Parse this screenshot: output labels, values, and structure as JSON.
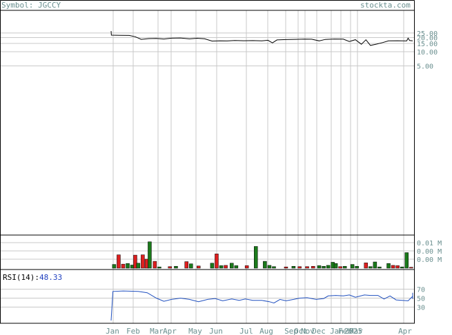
{
  "header": {
    "symbol_prefix": "Symbol:",
    "symbol": "JGCCY",
    "brand": "stockta.com"
  },
  "colors": {
    "price_line": "#000000",
    "volume_up": "#1b7a1b",
    "volume_down": "#dd1f1f",
    "rsi_line": "#1f4fbf",
    "grid": "#c8c8c8",
    "axis_text": "#6a8f8f",
    "frame": "#000000"
  },
  "rsi": {
    "label": "RSI(14):",
    "value": "48.33"
  },
  "chart_data": [
    {
      "type": "line",
      "name": "price",
      "x_labels": [
        "Jan",
        "Feb",
        "Mar",
        "Apr",
        "May",
        "Jun",
        "Jul",
        "Aug",
        "Sep",
        "Oct",
        "Nov",
        "Dec",
        "Jan",
        "Feb",
        "2025",
        "Mar",
        "Apr"
      ],
      "y_ticks": [
        "25.00",
        "20.00",
        "15.00",
        "10.00",
        "5.00"
      ],
      "y_tick_values": [
        25,
        20,
        15,
        10,
        5
      ],
      "ylim": [
        0,
        27.5
      ],
      "log_scale": true,
      "grid": true,
      "points": [
        [
          0.0,
          27.5
        ],
        [
          0.001,
          22.5
        ],
        [
          0.03,
          22.3
        ],
        [
          0.06,
          22.2
        ],
        [
          0.08,
          20.8
        ],
        [
          0.1,
          18.3
        ],
        [
          0.125,
          19.0
        ],
        [
          0.15,
          19.2
        ],
        [
          0.175,
          18.6
        ],
        [
          0.2,
          19.4
        ],
        [
          0.23,
          19.6
        ],
        [
          0.26,
          18.7
        ],
        [
          0.285,
          19.3
        ],
        [
          0.31,
          18.8
        ],
        [
          0.335,
          16.8
        ],
        [
          0.36,
          17.0
        ],
        [
          0.385,
          16.9
        ],
        [
          0.41,
          17.3
        ],
        [
          0.44,
          17.1
        ],
        [
          0.47,
          17.2
        ],
        [
          0.5,
          17.0
        ],
        [
          0.52,
          17.5
        ],
        [
          0.535,
          15.4
        ],
        [
          0.55,
          17.8
        ],
        [
          0.58,
          18.1
        ],
        [
          0.61,
          18.3
        ],
        [
          0.64,
          18.5
        ],
        [
          0.665,
          18.4
        ],
        [
          0.69,
          17.0
        ],
        [
          0.71,
          18.2
        ],
        [
          0.74,
          18.6
        ],
        [
          0.77,
          18.5
        ],
        [
          0.79,
          16.5
        ],
        [
          0.81,
          18.0
        ],
        [
          0.83,
          14.4
        ],
        [
          0.845,
          17.9
        ],
        [
          0.86,
          13.6
        ],
        [
          0.88,
          14.5
        ],
        [
          0.9,
          15.6
        ],
        [
          0.92,
          17.0
        ],
        [
          0.95,
          17.1
        ],
        [
          0.98,
          16.9
        ],
        [
          0.985,
          19.4
        ],
        [
          0.99,
          17.3
        ],
        [
          1.0,
          17.0
        ]
      ]
    },
    {
      "type": "bar",
      "name": "volume",
      "y_ticks": [
        "0.01 M",
        "0.00 M",
        "0.00 M"
      ],
      "grid": true,
      "bars": [
        [
          0.01,
          1.2,
          "up"
        ],
        [
          0.025,
          4.3,
          "down"
        ],
        [
          0.04,
          1.3,
          "down"
        ],
        [
          0.055,
          1.5,
          "up"
        ],
        [
          0.07,
          1.0,
          "up"
        ],
        [
          0.08,
          4.2,
          "down"
        ],
        [
          0.09,
          1.6,
          "up"
        ],
        [
          0.105,
          4.3,
          "down"
        ],
        [
          0.118,
          2.9,
          "down"
        ],
        [
          0.128,
          8.5,
          "up"
        ],
        [
          0.145,
          2.2,
          "down"
        ],
        [
          0.16,
          0.4,
          "up"
        ],
        [
          0.195,
          0.5,
          "down"
        ],
        [
          0.215,
          0.6,
          "up"
        ],
        [
          0.25,
          2.1,
          "down"
        ],
        [
          0.265,
          1.4,
          "up"
        ],
        [
          0.29,
          0.7,
          "down"
        ],
        [
          0.335,
          1.6,
          "up"
        ],
        [
          0.35,
          4.6,
          "down"
        ],
        [
          0.365,
          0.8,
          "up"
        ],
        [
          0.38,
          0.9,
          "down"
        ],
        [
          0.4,
          1.6,
          "up"
        ],
        [
          0.415,
          0.8,
          "up"
        ],
        [
          0.45,
          0.8,
          "down"
        ],
        [
          0.48,
          7.0,
          "up"
        ],
        [
          0.51,
          2.2,
          "up"
        ],
        [
          0.525,
          0.9,
          "up"
        ],
        [
          0.54,
          0.5,
          "up"
        ],
        [
          0.58,
          0.4,
          "down"
        ],
        [
          0.605,
          0.6,
          "up"
        ],
        [
          0.625,
          0.5,
          "down"
        ],
        [
          0.65,
          0.5,
          "down"
        ],
        [
          0.67,
          0.6,
          "down"
        ],
        [
          0.69,
          0.8,
          "up"
        ],
        [
          0.705,
          0.6,
          "up"
        ],
        [
          0.72,
          0.9,
          "up"
        ],
        [
          0.735,
          1.9,
          "up"
        ],
        [
          0.745,
          1.5,
          "up"
        ],
        [
          0.76,
          0.5,
          "down"
        ],
        [
          0.775,
          0.6,
          "up"
        ],
        [
          0.8,
          1.2,
          "up"
        ],
        [
          0.815,
          0.6,
          "up"
        ],
        [
          0.845,
          1.7,
          "down"
        ],
        [
          0.86,
          0.5,
          "up"
        ],
        [
          0.875,
          2.0,
          "up"
        ],
        [
          0.89,
          0.4,
          "up"
        ],
        [
          0.92,
          1.5,
          "up"
        ],
        [
          0.935,
          0.9,
          "down"
        ],
        [
          0.95,
          0.8,
          "down"
        ],
        [
          0.965,
          0.4,
          "up"
        ],
        [
          0.98,
          5.0,
          "up"
        ],
        [
          0.995,
          0.3,
          "down"
        ]
      ]
    },
    {
      "type": "line",
      "name": "rsi",
      "y_ticks": [
        "70",
        "50",
        "30"
      ],
      "y_tick_values": [
        70,
        50,
        30
      ],
      "ylim": [
        0,
        100
      ],
      "grid": true,
      "points": [
        [
          0.0,
          0
        ],
        [
          0.006,
          65
        ],
        [
          0.04,
          66
        ],
        [
          0.09,
          65
        ],
        [
          0.12,
          62
        ],
        [
          0.15,
          50
        ],
        [
          0.175,
          43
        ],
        [
          0.2,
          47
        ],
        [
          0.23,
          50
        ],
        [
          0.26,
          47
        ],
        [
          0.29,
          42
        ],
        [
          0.32,
          47
        ],
        [
          0.345,
          49
        ],
        [
          0.37,
          44
        ],
        [
          0.4,
          48
        ],
        [
          0.425,
          45
        ],
        [
          0.445,
          48
        ],
        [
          0.47,
          45
        ],
        [
          0.5,
          45
        ],
        [
          0.525,
          42
        ],
        [
          0.54,
          39
        ],
        [
          0.56,
          47
        ],
        [
          0.58,
          44
        ],
        [
          0.605,
          47
        ],
        [
          0.625,
          50
        ],
        [
          0.65,
          51
        ],
        [
          0.68,
          47
        ],
        [
          0.705,
          49
        ],
        [
          0.72,
          55
        ],
        [
          0.745,
          56
        ],
        [
          0.77,
          55
        ],
        [
          0.79,
          57
        ],
        [
          0.81,
          52
        ],
        [
          0.84,
          57
        ],
        [
          0.86,
          56
        ],
        [
          0.885,
          56
        ],
        [
          0.905,
          48
        ],
        [
          0.925,
          55
        ],
        [
          0.945,
          46
        ],
        [
          0.965,
          45
        ],
        [
          0.985,
          44
        ],
        [
          1.0,
          54
        ],
        [
          1.0,
          55
        ],
        [
          1.0,
          62
        ],
        [
          1.0,
          48
        ]
      ]
    }
  ]
}
